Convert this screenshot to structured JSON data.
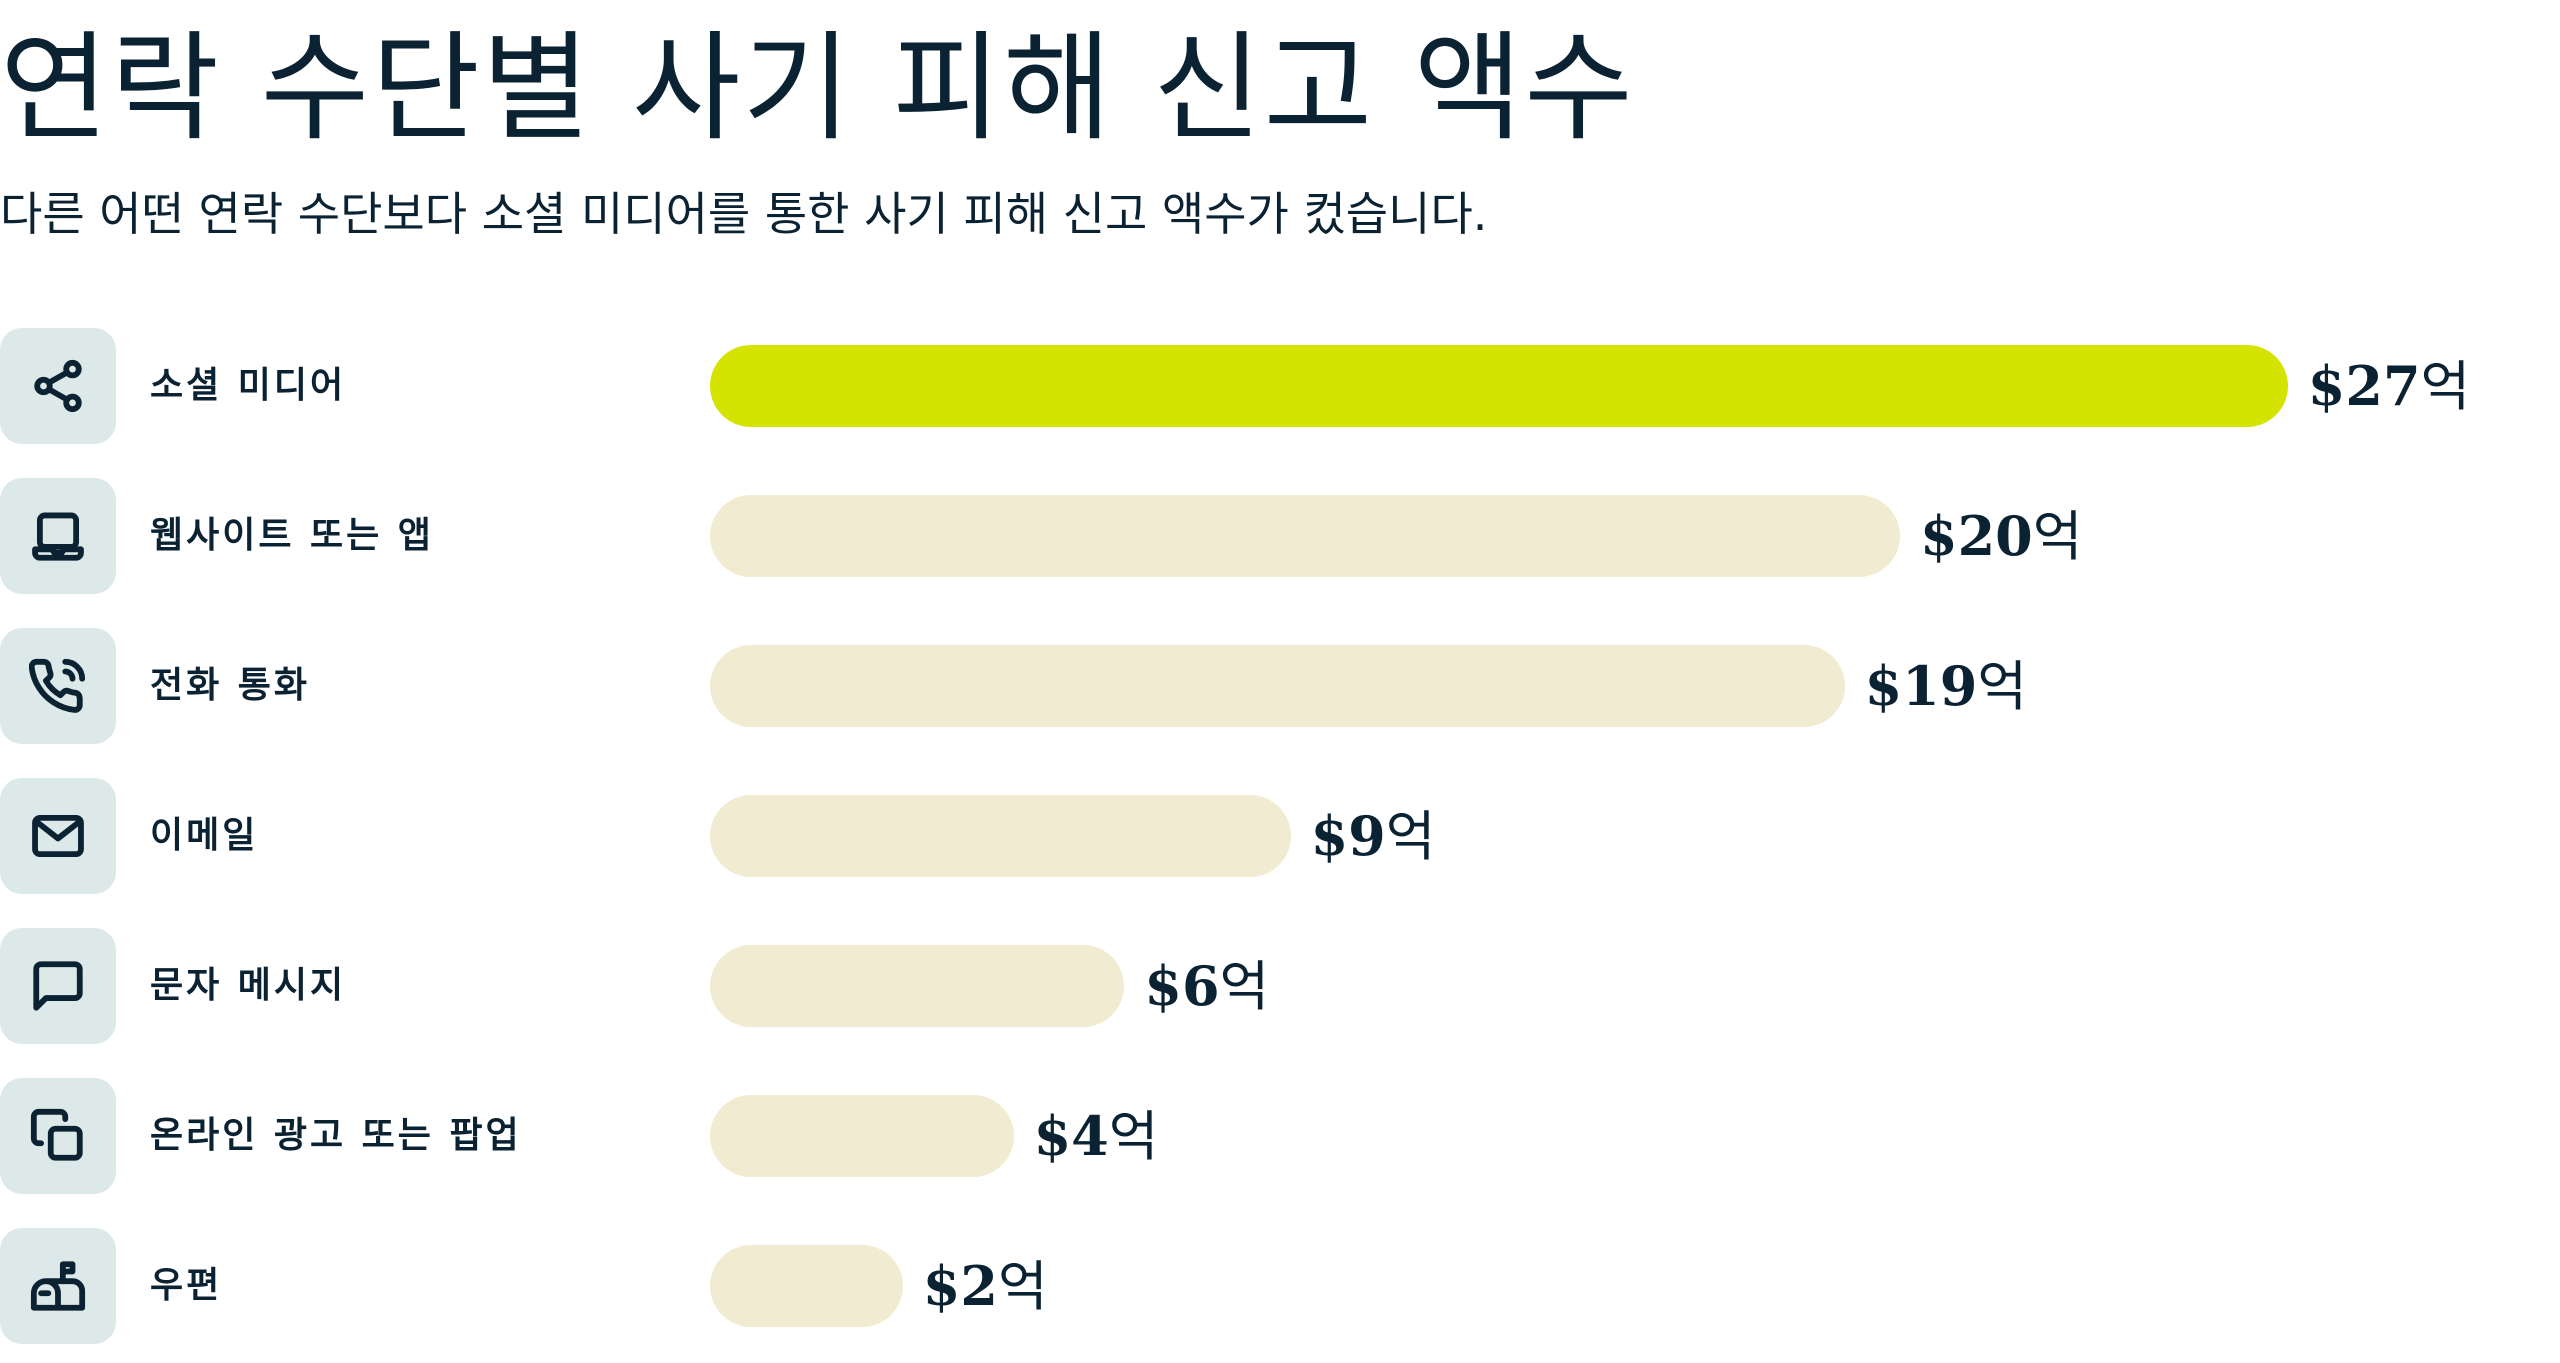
{
  "chart_data": {
    "type": "bar",
    "orientation": "horizontal",
    "title": "연락 수단별 사기 피해 신고 액수",
    "subtitle": "다른 어떤 연락 수단보다 소셜 미디어를 통한 사기 피해 신고 액수가 컸습니다.",
    "unit_suffix": "억",
    "currency_prefix": "$",
    "categories": [
      "소셜 미디어",
      "웹사이트 또는 앱",
      "전화 통화",
      "이메일",
      "문자 메시지",
      "온라인 광고 또는 팝업",
      "우편"
    ],
    "values": [
      27,
      20,
      19,
      9,
      6,
      4,
      2
    ],
    "value_labels": [
      "$27",
      "$20",
      "$19",
      "$9",
      "$6",
      "$4",
      "$2"
    ],
    "icons": [
      "share-icon",
      "laptop-icon",
      "phone-call-icon",
      "mail-icon",
      "message-icon",
      "copy-icon",
      "mailbox-icon"
    ],
    "highlight_index": 0,
    "grid": false,
    "legend": "none"
  },
  "colors": {
    "text": "#0b2233",
    "highlight_bar": "#d4e300",
    "bar": "#f0ebd1",
    "icon_background": "#dde8e8"
  }
}
